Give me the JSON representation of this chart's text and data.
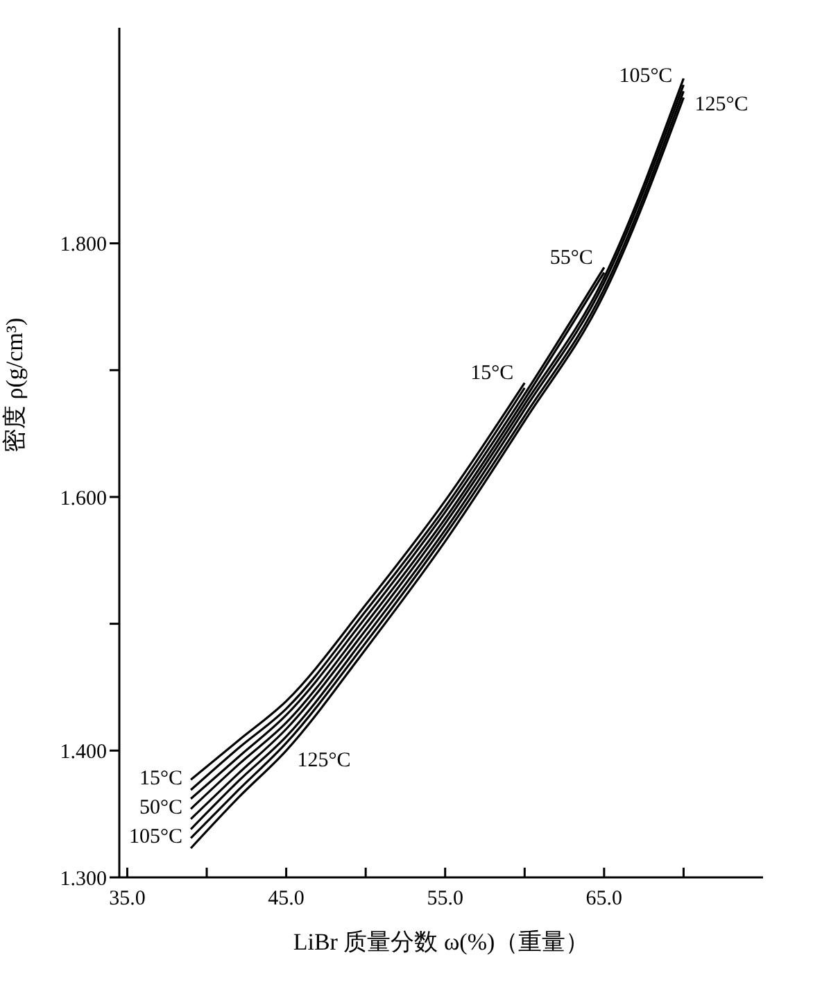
{
  "chart_data": {
    "type": "line",
    "xlabel": "LiBr 质量分数 ω(%)（重量）",
    "ylabel": "密度 ρ(g/cm³)",
    "x": [
      39,
      42,
      45,
      50,
      55,
      60,
      65,
      70
    ],
    "xlim": [
      34.5,
      75
    ],
    "xticks": [
      {
        "value": 35,
        "label": "35.0"
      },
      {
        "value": 40,
        "label": null
      },
      {
        "value": 45,
        "label": "45.0"
      },
      {
        "value": 50,
        "label": null
      },
      {
        "value": 55,
        "label": "55.0"
      },
      {
        "value": 60,
        "label": null
      },
      {
        "value": 65,
        "label": "65.0"
      },
      {
        "value": 70,
        "label": null
      }
    ],
    "ylim": [
      1.3,
      1.97
    ],
    "yticks": [
      {
        "value": 1.3,
        "label": "1.300"
      },
      {
        "value": 1.4,
        "label": "1.400"
      },
      {
        "value": 1.5,
        "label": null
      },
      {
        "value": 1.6,
        "label": "1.600"
      },
      {
        "value": 1.7,
        "label": null
      },
      {
        "value": 1.8,
        "label": "1.800"
      }
    ],
    "marker": "none",
    "line_style": "solid",
    "series": [
      {
        "color": "#000000",
        "values": [
          1.377,
          1.408,
          1.439,
          1.515,
          1.597,
          1.69,
          null,
          null
        ]
      },
      {
        "color": "#000000",
        "values": [
          1.369,
          1.402,
          1.433,
          1.51,
          1.592,
          1.686,
          null,
          null
        ]
      },
      {
        "color": "#000000",
        "values": [
          1.362,
          1.395,
          1.428,
          1.505,
          1.588,
          1.681,
          1.781,
          null
        ]
      },
      {
        "color": "#000000",
        "values": [
          1.354,
          1.389,
          1.422,
          1.5,
          1.583,
          1.677,
          1.777,
          null
        ]
      },
      {
        "color": "#000000",
        "values": [
          1.346,
          1.382,
          1.417,
          1.495,
          1.579,
          1.673,
          1.773,
          1.93
        ]
      },
      {
        "color": "#000000",
        "values": [
          1.338,
          1.376,
          1.411,
          1.49,
          1.574,
          1.669,
          1.769,
          1.925
        ]
      },
      {
        "color": "#000000",
        "values": [
          1.331,
          1.369,
          1.406,
          1.485,
          1.57,
          1.664,
          1.764,
          1.92
        ]
      },
      {
        "color": "#000000",
        "values": [
          1.323,
          1.363,
          1.4,
          1.48,
          1.565,
          1.66,
          1.76,
          1.915
        ]
      }
    ],
    "annotations": [
      {
        "text": "15°C",
        "x": 39,
        "y": 1.377
      },
      {
        "text": "50°C",
        "x": 39,
        "y": 1.354
      },
      {
        "text": "105°C",
        "x": 39,
        "y": 1.331
      },
      {
        "text": "125°C",
        "x": 45,
        "y": 1.4
      },
      {
        "text": "15°C",
        "x": 60,
        "y": 1.69
      },
      {
        "text": "55°C",
        "x": 65,
        "y": 1.781
      },
      {
        "text": "105°C",
        "x": 70,
        "y": 1.92
      },
      {
        "text": "125°C",
        "x": 70,
        "y": 1.915
      }
    ]
  }
}
